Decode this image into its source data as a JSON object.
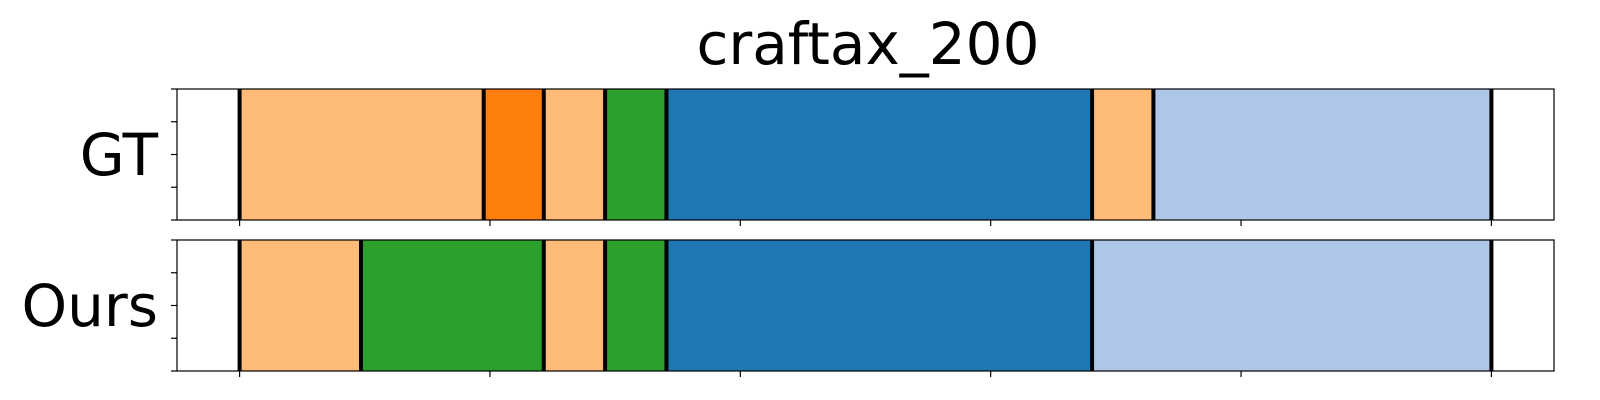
{
  "chart_data": {
    "type": "segmentation-timeline",
    "title": "craftax_200",
    "x_range": [
      -0.5,
      10.5
    ],
    "x_ticks": [
      0,
      2,
      4,
      6,
      8,
      10
    ],
    "colors": {
      "light_orange": "#ffbb78",
      "orange": "#ff7f0e",
      "green": "#2ca02c",
      "blue": "#1f77b4",
      "light_blue": "#aec7e8",
      "boundary": "#000000"
    },
    "rows": [
      {
        "label": "GT",
        "segments": [
          {
            "start": 0.0,
            "end": 1.95,
            "color": "light_orange"
          },
          {
            "start": 1.95,
            "end": 2.43,
            "color": "orange"
          },
          {
            "start": 2.43,
            "end": 2.92,
            "color": "light_orange"
          },
          {
            "start": 2.92,
            "end": 3.41,
            "color": "green"
          },
          {
            "start": 3.41,
            "end": 6.81,
            "color": "blue"
          },
          {
            "start": 6.81,
            "end": 7.3,
            "color": "light_orange"
          },
          {
            "start": 7.3,
            "end": 10.0,
            "color": "light_blue"
          }
        ],
        "boundaries": [
          0.0,
          1.95,
          2.43,
          2.92,
          3.41,
          6.81,
          7.3,
          10.0
        ]
      },
      {
        "label": "Ours",
        "segments": [
          {
            "start": 0.0,
            "end": 0.97,
            "color": "light_orange"
          },
          {
            "start": 0.97,
            "end": 2.43,
            "color": "green"
          },
          {
            "start": 2.43,
            "end": 2.92,
            "color": "light_orange"
          },
          {
            "start": 2.92,
            "end": 3.41,
            "color": "green"
          },
          {
            "start": 3.41,
            "end": 6.81,
            "color": "blue"
          },
          {
            "start": 6.81,
            "end": 10.0,
            "color": "light_blue"
          }
        ],
        "boundaries": [
          0.0,
          0.97,
          2.43,
          2.92,
          3.41,
          6.81,
          10.0
        ]
      }
    ]
  }
}
